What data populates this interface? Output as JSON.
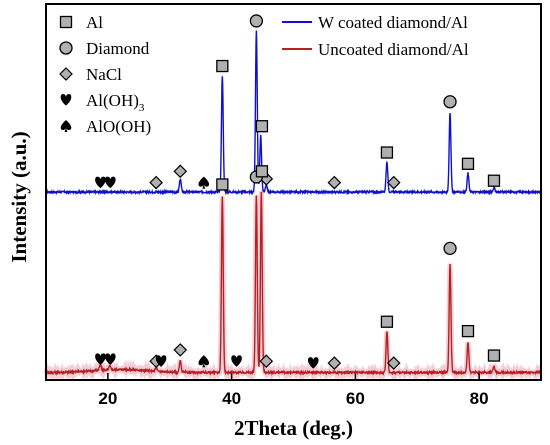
{
  "chart_data": {
    "type": "line",
    "title": "",
    "xlabel": "2Theta (deg.)",
    "ylabel": "Intensity (a.u.)",
    "xlim": [
      10,
      90
    ],
    "ylim": [
      0,
      100
    ],
    "xticks": [
      20,
      40,
      60,
      80
    ],
    "xtick_labels": [
      "20",
      "40",
      "60",
      "80"
    ],
    "ytick_labels": [],
    "grid": false,
    "legend_position": "top-right",
    "series": [
      {
        "name": "W coated diamond/Al",
        "color": "#1010cc",
        "baseline": 50,
        "peaks": [
          {
            "x": 31.7,
            "height": 3.5,
            "width": 0.2
          },
          {
            "x": 38.5,
            "height": 31,
            "width": 0.2
          },
          {
            "x": 44.0,
            "height": 43,
            "width": 0.2
          },
          {
            "x": 44.7,
            "height": 15,
            "width": 0.2
          },
          {
            "x": 45.6,
            "height": 2,
            "width": 0.2
          },
          {
            "x": 65.1,
            "height": 8,
            "width": 0.2
          },
          {
            "x": 75.3,
            "height": 21,
            "width": 0.2
          },
          {
            "x": 78.2,
            "height": 5,
            "width": 0.2
          },
          {
            "x": 82.4,
            "height": 1.2,
            "width": 0.2
          }
        ]
      },
      {
        "name": "Uncoated diamond/Al",
        "color": "#b22222",
        "baseline": 2,
        "peaks": [
          {
            "x": 18.8,
            "height": 1.5,
            "width": 0.2
          },
          {
            "x": 20.3,
            "height": 1,
            "width": 0.2
          },
          {
            "x": 27.8,
            "height": 1,
            "width": 0.2
          },
          {
            "x": 31.7,
            "height": 3,
            "width": 0.2
          },
          {
            "x": 38.5,
            "height": 47,
            "width": 0.2
          },
          {
            "x": 44.0,
            "height": 47,
            "width": 0.2
          },
          {
            "x": 44.8,
            "height": 48,
            "width": 0.2
          },
          {
            "x": 65.1,
            "height": 11,
            "width": 0.2
          },
          {
            "x": 75.3,
            "height": 29,
            "width": 0.2
          },
          {
            "x": 78.2,
            "height": 8,
            "width": 0.2
          },
          {
            "x": 82.4,
            "height": 1.5,
            "width": 0.2
          }
        ]
      }
    ],
    "phase_legend": [
      {
        "marker": "square",
        "label": "Al"
      },
      {
        "marker": "circle",
        "label": "Diamond"
      },
      {
        "marker": "diamond",
        "label": "NaCl"
      },
      {
        "marker": "heart",
        "label": "Al(OH)",
        "subscript": "3"
      },
      {
        "marker": "spade",
        "label": "AlO(OH)"
      }
    ],
    "markers": [
      {
        "trace": "W coated diamond/Al",
        "type": "heart",
        "x": 18.8,
        "y": 52.5
      },
      {
        "trace": "W coated diamond/Al",
        "type": "heart",
        "x": 20.4,
        "y": 52.5
      },
      {
        "trace": "W coated diamond/Al",
        "type": "diamond",
        "x": 27.8,
        "y": 52.5
      },
      {
        "trace": "W coated diamond/Al",
        "type": "diamond",
        "x": 31.7,
        "y": 55.5
      },
      {
        "trace": "W coated diamond/Al",
        "type": "spade",
        "x": 35.5,
        "y": 52.5
      },
      {
        "trace": "W coated diamond/Al",
        "type": "square",
        "x": 38.5,
        "y": 83.5
      },
      {
        "trace": "W coated diamond/Al",
        "type": "circle",
        "x": 44.0,
        "y": 95.5
      },
      {
        "trace": "W coated diamond/Al",
        "type": "square",
        "x": 44.9,
        "y": 67.5
      },
      {
        "trace": "W coated diamond/Al",
        "type": "diamond",
        "x": 45.6,
        "y": 53.5
      },
      {
        "trace": "W coated diamond/Al",
        "type": "diamond",
        "x": 56.6,
        "y": 52.5
      },
      {
        "trace": "W coated diamond/Al",
        "type": "square",
        "x": 65.1,
        "y": 60.5
      },
      {
        "trace": "W coated diamond/Al",
        "type": "diamond",
        "x": 66.2,
        "y": 52.5
      },
      {
        "trace": "W coated diamond/Al",
        "type": "circle",
        "x": 75.3,
        "y": 74
      },
      {
        "trace": "W coated diamond/Al",
        "type": "square",
        "x": 78.2,
        "y": 57.5
      },
      {
        "trace": "W coated diamond/Al",
        "type": "square",
        "x": 82.4,
        "y": 53
      },
      {
        "trace": "Uncoated diamond/Al",
        "type": "heart",
        "x": 18.8,
        "y": 5.5
      },
      {
        "trace": "Uncoated diamond/Al",
        "type": "heart",
        "x": 20.4,
        "y": 5.5
      },
      {
        "trace": "Uncoated diamond/Al",
        "type": "diamond",
        "x": 27.8,
        "y": 5
      },
      {
        "trace": "Uncoated diamond/Al",
        "type": "heart",
        "x": 28.6,
        "y": 5
      },
      {
        "trace": "Uncoated diamond/Al",
        "type": "diamond",
        "x": 31.7,
        "y": 8
      },
      {
        "trace": "Uncoated diamond/Al",
        "type": "spade",
        "x": 35.5,
        "y": 5
      },
      {
        "trace": "Uncoated diamond/Al",
        "type": "square",
        "x": 38.5,
        "y": 52
      },
      {
        "trace": "Uncoated diamond/Al",
        "type": "heart",
        "x": 40.8,
        "y": 5
      },
      {
        "trace": "Uncoated diamond/Al",
        "type": "circle",
        "x": 44.0,
        "y": 54
      },
      {
        "trace": "Uncoated diamond/Al",
        "type": "square",
        "x": 44.9,
        "y": 55.5
      },
      {
        "trace": "Uncoated diamond/Al",
        "type": "diamond",
        "x": 45.6,
        "y": 5
      },
      {
        "trace": "Uncoated diamond/Al",
        "type": "heart",
        "x": 53.2,
        "y": 4.5
      },
      {
        "trace": "Uncoated diamond/Al",
        "type": "diamond",
        "x": 56.6,
        "y": 4.5
      },
      {
        "trace": "Uncoated diamond/Al",
        "type": "square",
        "x": 65.1,
        "y": 15.5
      },
      {
        "trace": "Uncoated diamond/Al",
        "type": "diamond",
        "x": 66.2,
        "y": 4.5
      },
      {
        "trace": "Uncoated diamond/Al",
        "type": "circle",
        "x": 75.3,
        "y": 35
      },
      {
        "trace": "Uncoated diamond/Al",
        "type": "square",
        "x": 78.2,
        "y": 13
      },
      {
        "trace": "Uncoated diamond/Al",
        "type": "square",
        "x": 82.4,
        "y": 6.5
      }
    ]
  }
}
